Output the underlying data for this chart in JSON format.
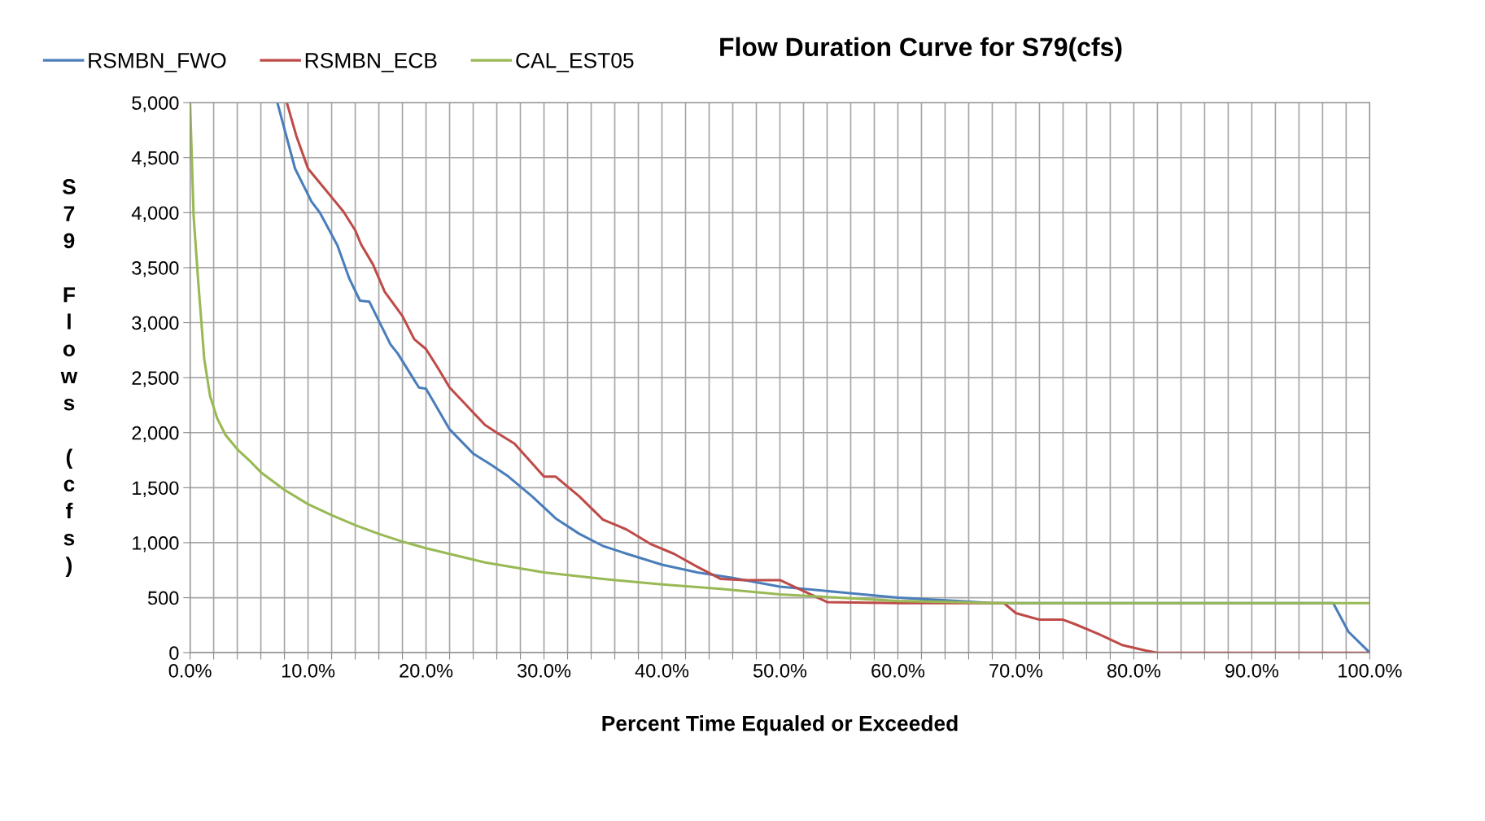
{
  "chart_data": {
    "type": "line",
    "title": "Flow Duration Curve for S79(cfs)",
    "xlabel": "Percent Time Equaled or Exceeded",
    "ylabel": "S79 Flows (cfs)",
    "xlim": [
      0,
      100
    ],
    "ylim": [
      0,
      5000
    ],
    "xticks": [
      {
        "value": 0,
        "label": "0.0%"
      },
      {
        "value": 2,
        "label": null
      },
      {
        "value": 4,
        "label": null
      },
      {
        "value": 6,
        "label": null
      },
      {
        "value": 8,
        "label": null
      },
      {
        "value": 10,
        "label": "10.0%"
      },
      {
        "value": 12,
        "label": null
      },
      {
        "value": 14,
        "label": null
      },
      {
        "value": 16,
        "label": null
      },
      {
        "value": 18,
        "label": null
      },
      {
        "value": 20,
        "label": "20.0%"
      },
      {
        "value": 22,
        "label": null
      },
      {
        "value": 24,
        "label": null
      },
      {
        "value": 26,
        "label": null
      },
      {
        "value": 28,
        "label": null
      },
      {
        "value": 30,
        "label": "30.0%"
      },
      {
        "value": 32,
        "label": null
      },
      {
        "value": 34,
        "label": null
      },
      {
        "value": 36,
        "label": null
      },
      {
        "value": 38,
        "label": null
      },
      {
        "value": 40,
        "label": "40.0%"
      },
      {
        "value": 42,
        "label": null
      },
      {
        "value": 44,
        "label": null
      },
      {
        "value": 46,
        "label": null
      },
      {
        "value": 48,
        "label": null
      },
      {
        "value": 50,
        "label": "50.0%"
      },
      {
        "value": 52,
        "label": null
      },
      {
        "value": 54,
        "label": null
      },
      {
        "value": 56,
        "label": null
      },
      {
        "value": 58,
        "label": null
      },
      {
        "value": 60,
        "label": "60.0%"
      },
      {
        "value": 62,
        "label": null
      },
      {
        "value": 64,
        "label": null
      },
      {
        "value": 66,
        "label": null
      },
      {
        "value": 68,
        "label": null
      },
      {
        "value": 70,
        "label": "70.0%"
      },
      {
        "value": 72,
        "label": null
      },
      {
        "value": 74,
        "label": null
      },
      {
        "value": 76,
        "label": null
      },
      {
        "value": 78,
        "label": null
      },
      {
        "value": 80,
        "label": "80.0%"
      },
      {
        "value": 82,
        "label": null
      },
      {
        "value": 84,
        "label": null
      },
      {
        "value": 86,
        "label": null
      },
      {
        "value": 88,
        "label": null
      },
      {
        "value": 90,
        "label": "90.0%"
      },
      {
        "value": 92,
        "label": null
      },
      {
        "value": 94,
        "label": null
      },
      {
        "value": 96,
        "label": null
      },
      {
        "value": 98,
        "label": null
      },
      {
        "value": 100,
        "label": "100.0%"
      }
    ],
    "yticks": [
      0,
      500,
      {
        "value": 1000,
        "label": "1,000"
      },
      {
        "value": 1500,
        "label": "1,500"
      },
      {
        "value": 2000,
        "label": "2,000"
      },
      {
        "value": 2500,
        "label": "2,500"
      },
      {
        "value": 3000,
        "label": "3,000"
      },
      {
        "value": 3500,
        "label": "3,500"
      },
      {
        "value": 4000,
        "label": "4,000"
      },
      {
        "value": 4500,
        "label": "4,500"
      },
      {
        "value": 5000,
        "label": "5,000"
      }
    ],
    "grid": true,
    "legend": "top left",
    "marker": "none",
    "line_style": "solid",
    "series": [
      {
        "name": "RSMBN_FWO",
        "color": "#4a7ebb",
        "x": [
          7.4,
          8.9,
          10.3,
          11,
          12.5,
          13.5,
          14.4,
          15.2,
          17,
          17.6,
          19.4,
          20,
          22,
          24,
          25.5,
          27,
          29,
          31,
          33,
          35,
          37,
          40,
          43,
          46,
          50,
          55,
          60,
          65,
          68,
          96.9,
          98.2,
          100
        ],
        "values": [
          5000,
          4400,
          4100,
          4000,
          3700,
          3400,
          3200,
          3190,
          2800,
          2720,
          2410,
          2400,
          2030,
          1810,
          1710,
          1600,
          1420,
          1220,
          1080,
          970,
          900,
          800,
          730,
          680,
          600,
          550,
          500,
          470,
          450,
          450,
          190,
          0
        ]
      },
      {
        "name": "RSMBN_ECB",
        "color": "#be4b48",
        "x": [
          8.2,
          9,
          10,
          11,
          12,
          13,
          14,
          14.5,
          15.5,
          16.5,
          18,
          19,
          20,
          21,
          22,
          23.5,
          25,
          26,
          27.5,
          29,
          30,
          31,
          33,
          35,
          37,
          39,
          41,
          43,
          45,
          47,
          50,
          52,
          54,
          60,
          69,
          70,
          72,
          74,
          75,
          77,
          79,
          81,
          82,
          100
        ],
        "values": [
          5000,
          4700,
          4400,
          4270,
          4140,
          4010,
          3840,
          3710,
          3530,
          3280,
          3060,
          2850,
          2760,
          2590,
          2410,
          2240,
          2070,
          2000,
          1900,
          1720,
          1600,
          1600,
          1420,
          1210,
          1120,
          990,
          900,
          780,
          670,
          660,
          660,
          560,
          460,
          450,
          450,
          360,
          300,
          300,
          260,
          170,
          70,
          20,
          0,
          0
        ]
      },
      {
        "name": "CAL_EST05",
        "color": "#98b954",
        "x": [
          0,
          0.3,
          0.7,
          1.2,
          1.7,
          2.3,
          3,
          4,
          5,
          6,
          8,
          10,
          12,
          14,
          16,
          18,
          20,
          25,
          30,
          35,
          40,
          45,
          50,
          55,
          60,
          65,
          68,
          100
        ],
        "values": [
          5000,
          3970,
          3360,
          2670,
          2330,
          2130,
          1980,
          1850,
          1750,
          1640,
          1480,
          1350,
          1250,
          1160,
          1080,
          1010,
          950,
          820,
          730,
          670,
          620,
          580,
          530,
          500,
          470,
          460,
          450,
          450
        ]
      }
    ]
  }
}
